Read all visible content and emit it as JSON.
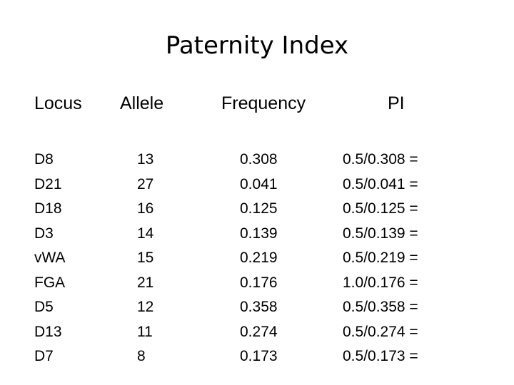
{
  "title": "Paternity Index",
  "table": {
    "headers": [
      "Locus",
      "Allele",
      "Frequency",
      "PI"
    ],
    "rows": [
      {
        "locus": "D8",
        "allele": "13",
        "frequency": "0.308",
        "pi": "0.5/0.308 ="
      },
      {
        "locus": "D21",
        "allele": "27",
        "frequency": "0.041",
        "pi": "0.5/0.041 ="
      },
      {
        "locus": "D18",
        "allele": "16",
        "frequency": "0.125",
        "pi": "0.5/0.125 ="
      },
      {
        "locus": "D3",
        "allele": "14",
        "frequency": "0.139",
        "pi": "0.5/0.139 ="
      },
      {
        "locus": "vWA",
        "allele": "15",
        "frequency": "0.219",
        "pi": "0.5/0.219 ="
      },
      {
        "locus": "FGA",
        "allele": "21",
        "frequency": "0.176",
        "pi": "1.0/0.176 ="
      },
      {
        "locus": "D5",
        "allele": "12",
        "frequency": "0.358",
        "pi": "0.5/0.358 ="
      },
      {
        "locus": "D13",
        "allele": "11",
        "frequency": "0.274",
        "pi": "0.5/0.274 ="
      },
      {
        "locus": "D7",
        "allele": "8",
        "frequency": "0.173",
        "pi": "0.5/0.173 ="
      }
    ]
  }
}
